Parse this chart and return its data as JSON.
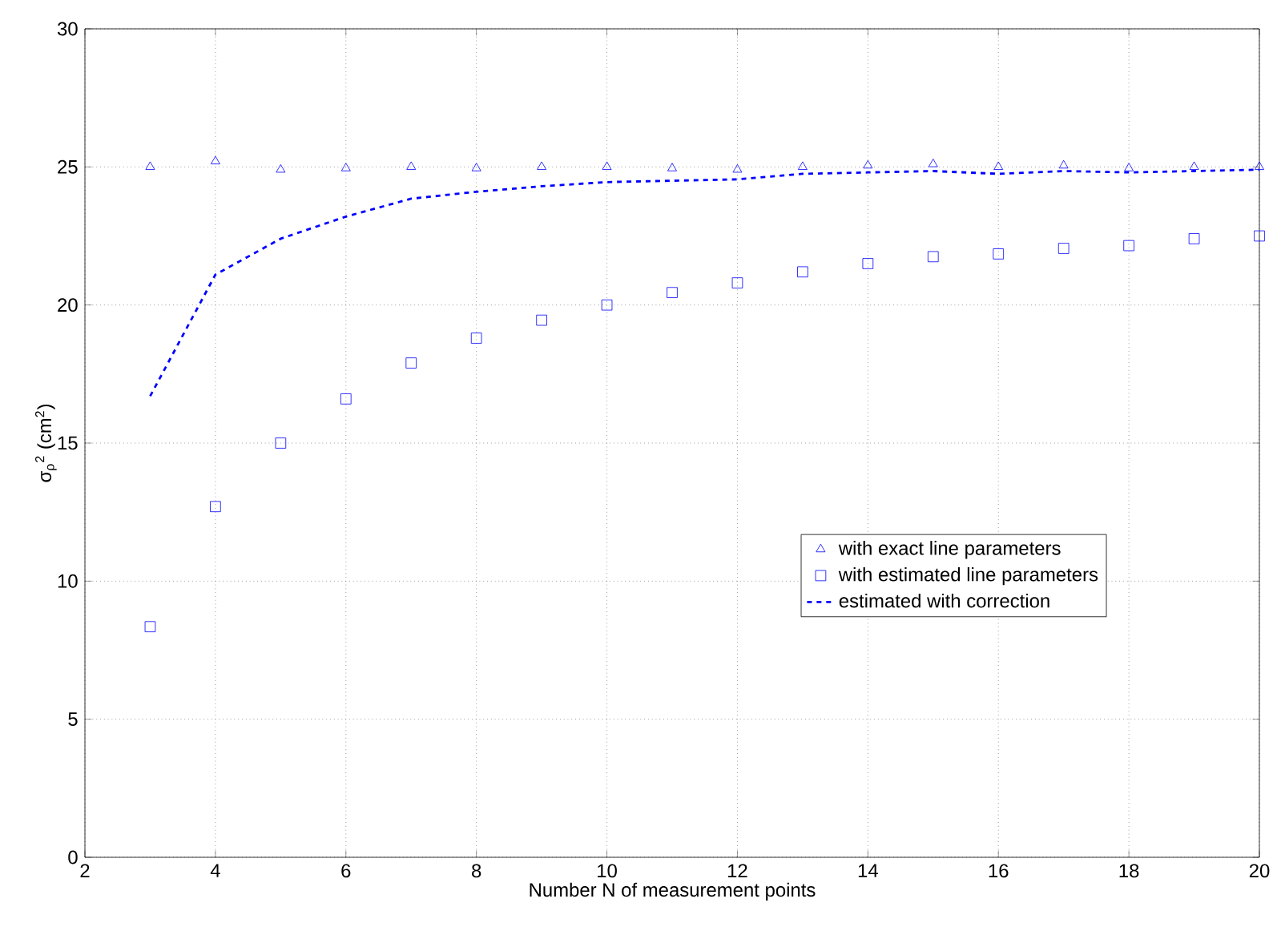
{
  "chart_data": {
    "type": "scatter",
    "xlabel": "Number N of measurement points",
    "ylabel": "σ$_{ρ}$$^{2}$ (cm$^{2}$)",
    "x": [
      3,
      4,
      5,
      6,
      7,
      8,
      9,
      10,
      11,
      12,
      13,
      14,
      15,
      16,
      17,
      18,
      19,
      20
    ],
    "xlim": [
      2,
      20
    ],
    "xticks": [
      2,
      4,
      6,
      8,
      10,
      12,
      14,
      16,
      18,
      20
    ],
    "ylim": [
      0,
      30
    ],
    "yticks": [
      0,
      5,
      10,
      15,
      20,
      25,
      30
    ],
    "grid": true,
    "legend": "right",
    "series": [
      {
        "name": "with exact line parameters",
        "marker": "triangle",
        "color": "#0000ff",
        "values": [
          25.0,
          25.2,
          24.9,
          24.95,
          25.0,
          24.95,
          25.0,
          25.0,
          24.95,
          24.9,
          25.0,
          25.05,
          25.1,
          25.0,
          25.05,
          24.95,
          25.0,
          25.0
        ]
      },
      {
        "name": "with estimated line parameters",
        "marker": "square",
        "color": "#0000ff",
        "values": [
          8.35,
          12.7,
          15.0,
          16.6,
          17.9,
          18.8,
          19.45,
          20.0,
          20.45,
          20.8,
          21.2,
          21.5,
          21.75,
          21.85,
          22.05,
          22.15,
          22.4,
          22.5
        ]
      },
      {
        "name": "estimated with correction",
        "type": "line",
        "marker": "none",
        "line_style": "dashed",
        "color": "#0000ff",
        "values": [
          16.7,
          21.1,
          22.4,
          23.2,
          23.85,
          24.1,
          24.3,
          24.45,
          24.5,
          24.55,
          24.75,
          24.8,
          24.85,
          24.75,
          24.85,
          24.8,
          24.85,
          24.9
        ]
      }
    ]
  }
}
